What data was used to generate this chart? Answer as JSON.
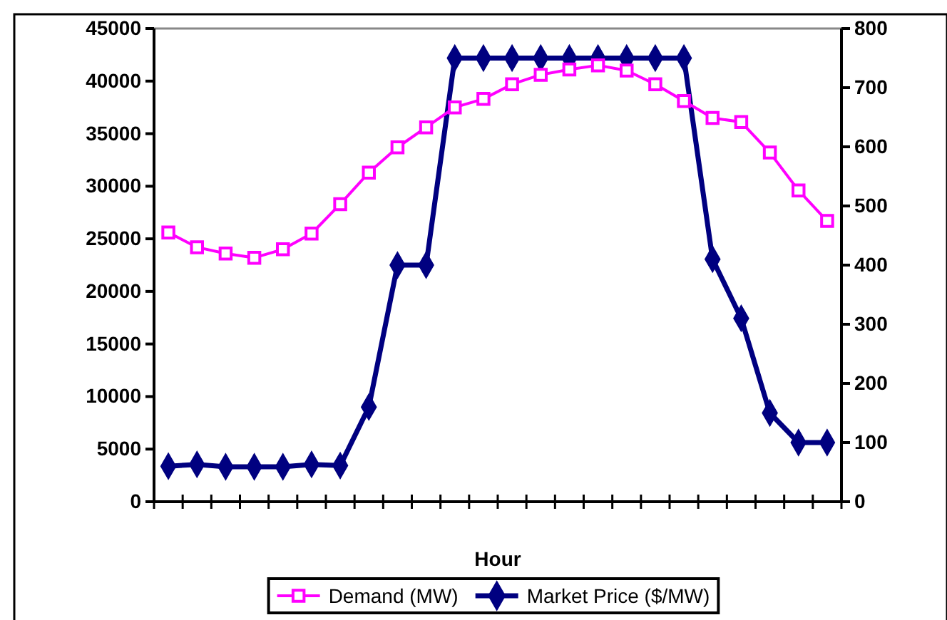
{
  "chart_data": {
    "type": "line",
    "xlabel": "Hour",
    "categories": [
      null,
      null,
      null,
      null,
      null,
      null,
      null,
      null,
      null,
      null,
      null,
      null,
      null,
      null,
      null,
      null,
      null,
      null,
      null,
      null,
      null,
      null,
      null,
      null
    ],
    "ylim": [
      0,
      45000
    ],
    "yticks": [
      0,
      5000,
      10000,
      15000,
      20000,
      25000,
      30000,
      35000,
      40000,
      45000
    ],
    "y2lim": [
      0,
      800
    ],
    "y2ticks": [
      0,
      100,
      200,
      300,
      400,
      500,
      600,
      700,
      800
    ],
    "legend": "bottom",
    "grid": false,
    "series": [
      {
        "name": "Demand (MW)",
        "color": "#ff00ff",
        "marker": "square",
        "values": [
          25600,
          24200,
          23600,
          23200,
          24000,
          25500,
          28300,
          31300,
          33700,
          35600,
          37500,
          38300,
          39700,
          40600,
          41100,
          41500,
          41000,
          39700,
          38100,
          36500,
          36100,
          33200,
          29600,
          26700
        ]
      },
      {
        "name": "Market Price ($/MW)",
        "color": "#000080",
        "marker": "diamond",
        "axis": "y2",
        "values": [
          60,
          63,
          59,
          59,
          59,
          63,
          61,
          160,
          400,
          400,
          750,
          750,
          750,
          750,
          750,
          750,
          750,
          750,
          750,
          410,
          310,
          150,
          100,
          100
        ]
      }
    ]
  }
}
